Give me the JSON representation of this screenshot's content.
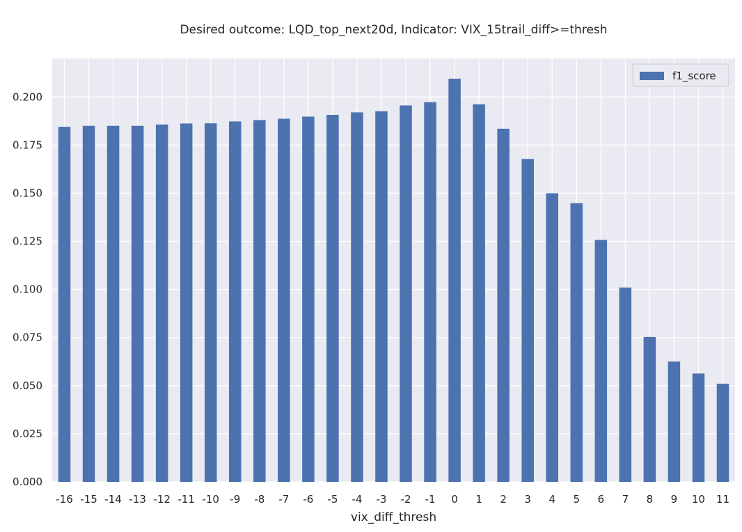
{
  "chart_data": {
    "type": "bar",
    "title": "Desired outcome: LQD_top_next20d, Indicator: VIX_15trail_diff>=thresh",
    "xlabel": "vix_diff_thresh",
    "ylabel": "",
    "categories": [
      "-16",
      "-15",
      "-14",
      "-13",
      "-12",
      "-11",
      "-10",
      "-9",
      "-8",
      "-7",
      "-6",
      "-5",
      "-4",
      "-3",
      "-2",
      "-1",
      "0",
      "1",
      "2",
      "3",
      "4",
      "5",
      "6",
      "7",
      "8",
      "9",
      "10",
      "11"
    ],
    "series": [
      {
        "name": "f1_score",
        "values": [
          0.1845,
          0.185,
          0.185,
          0.185,
          0.1857,
          0.1862,
          0.1863,
          0.1873,
          0.188,
          0.1887,
          0.1898,
          0.1907,
          0.192,
          0.1926,
          0.1956,
          0.1973,
          0.2095,
          0.1962,
          0.1835,
          0.1678,
          0.15,
          0.1448,
          0.1257,
          0.101,
          0.0753,
          0.0625,
          0.0563,
          0.051
        ],
        "color": "#4c72b0"
      }
    ],
    "ylim": [
      0,
      0.22
    ],
    "yticks": [
      "0.000",
      "0.025",
      "0.050",
      "0.075",
      "0.100",
      "0.125",
      "0.150",
      "0.175",
      "0.200"
    ],
    "grid": true,
    "legend_position": "top-right",
    "background_color": "#eaeaf2",
    "grid_color": "#ffffff"
  }
}
